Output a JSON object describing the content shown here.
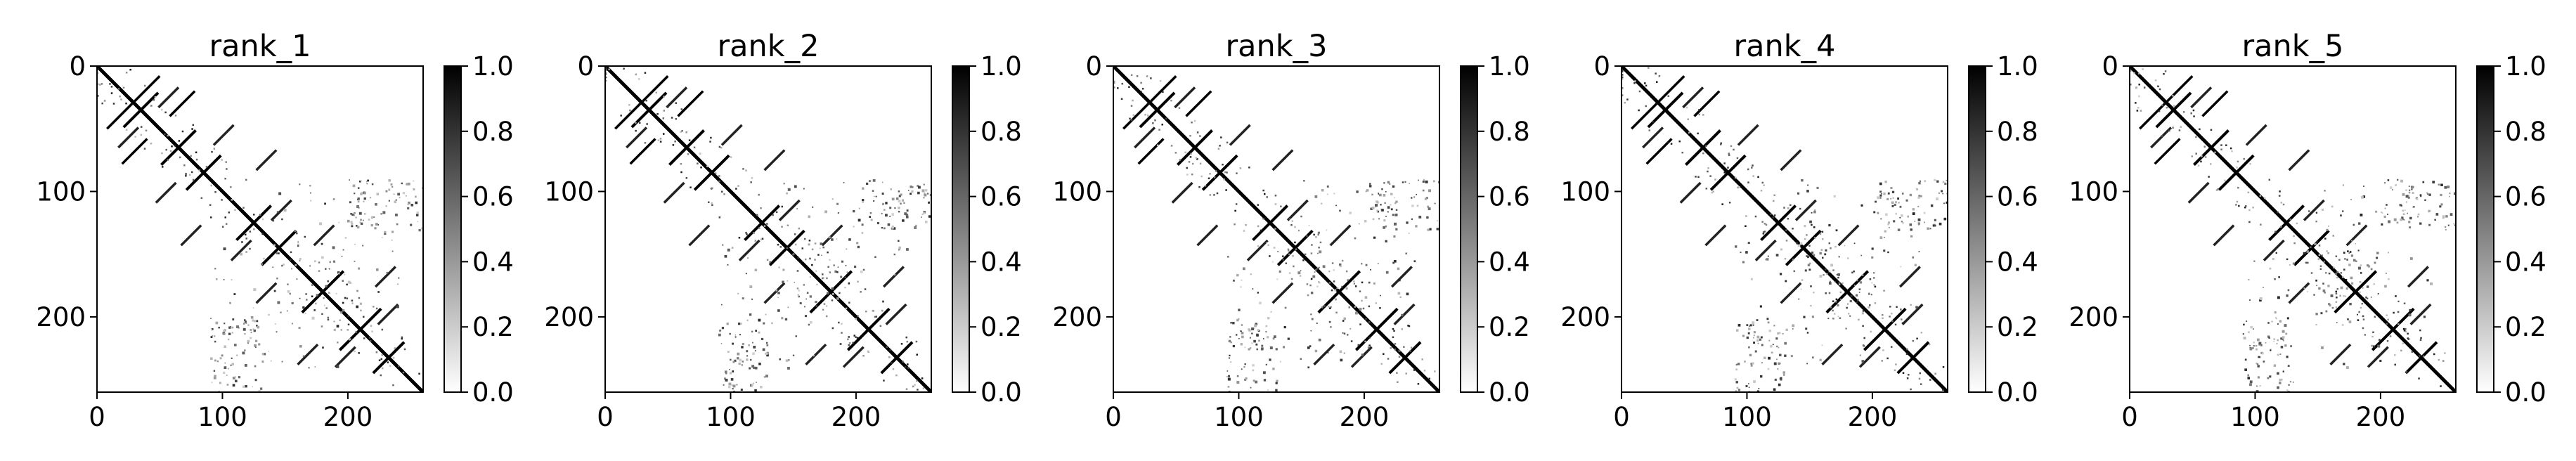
{
  "figure": {
    "background": "#ffffff",
    "colormap": "gray_r",
    "colors": {
      "low": "#ffffff",
      "high": "#000000"
    }
  },
  "chart_data": [
    {
      "type": "heatmap",
      "title": "rank_1",
      "xlabel": "",
      "ylabel": "",
      "xlim": [
        0,
        260
      ],
      "ylim": [
        260,
        0
      ],
      "xticks": [
        0,
        100,
        200
      ],
      "yticks": [
        0,
        100,
        200
      ],
      "matrix_size": 260,
      "colorbar": {
        "min": 0.0,
        "max": 1.0,
        "ticks": [
          "0.0",
          "0.2",
          "0.4",
          "0.6",
          "0.8",
          "1.0"
        ]
      },
      "structure": {
        "diagonal": true,
        "anti_diagonal_blocks": [
          [
            10,
            60
          ],
          [
            40,
            90
          ],
          [
            60,
            110
          ],
          [
            100,
            150
          ],
          [
            120,
            170
          ],
          [
            150,
            210
          ],
          [
            180,
            240
          ],
          [
            210,
            255
          ]
        ],
        "sparse_offdiag_regions": [
          [
            90,
            130,
            200,
            260
          ],
          [
            140,
            240,
            90,
            200
          ]
        ]
      }
    },
    {
      "type": "heatmap",
      "title": "rank_2",
      "xlabel": "",
      "ylabel": "",
      "xlim": [
        0,
        260
      ],
      "ylim": [
        260,
        0
      ],
      "xticks": [
        0,
        100,
        200
      ],
      "yticks": [
        0,
        100,
        200
      ],
      "matrix_size": 260,
      "colorbar": {
        "min": 0.0,
        "max": 1.0,
        "ticks": [
          "0.0",
          "0.2",
          "0.4",
          "0.6",
          "0.8",
          "1.0"
        ]
      },
      "structure": {
        "diagonal": true,
        "anti_diagonal_blocks": [
          [
            10,
            60
          ],
          [
            40,
            90
          ],
          [
            60,
            110
          ],
          [
            100,
            150
          ],
          [
            120,
            170
          ],
          [
            150,
            210
          ],
          [
            180,
            240
          ],
          [
            210,
            255
          ]
        ],
        "sparse_offdiag_regions": [
          [
            90,
            130,
            200,
            260
          ],
          [
            140,
            240,
            90,
            200
          ]
        ]
      }
    },
    {
      "type": "heatmap",
      "title": "rank_3",
      "xlabel": "",
      "ylabel": "",
      "xlim": [
        0,
        260
      ],
      "ylim": [
        260,
        0
      ],
      "xticks": [
        0,
        100,
        200
      ],
      "yticks": [
        0,
        100,
        200
      ],
      "matrix_size": 260,
      "colorbar": {
        "min": 0.0,
        "max": 1.0,
        "ticks": [
          "0.0",
          "0.2",
          "0.4",
          "0.6",
          "0.8",
          "1.0"
        ]
      },
      "structure": {
        "diagonal": true,
        "anti_diagonal_blocks": [
          [
            10,
            60
          ],
          [
            40,
            90
          ],
          [
            60,
            110
          ],
          [
            100,
            150
          ],
          [
            120,
            170
          ],
          [
            150,
            210
          ],
          [
            180,
            240
          ],
          [
            210,
            255
          ]
        ],
        "sparse_offdiag_regions": [
          [
            90,
            130,
            200,
            260
          ],
          [
            140,
            240,
            90,
            200
          ]
        ]
      }
    },
    {
      "type": "heatmap",
      "title": "rank_4",
      "xlabel": "",
      "ylabel": "",
      "xlim": [
        0,
        260
      ],
      "ylim": [
        260,
        0
      ],
      "xticks": [
        0,
        100,
        200
      ],
      "yticks": [
        0,
        100,
        200
      ],
      "matrix_size": 260,
      "colorbar": {
        "min": 0.0,
        "max": 1.0,
        "ticks": [
          "0.0",
          "0.2",
          "0.4",
          "0.6",
          "0.8",
          "1.0"
        ]
      },
      "structure": {
        "diagonal": true,
        "anti_diagonal_blocks": [
          [
            10,
            60
          ],
          [
            40,
            90
          ],
          [
            60,
            110
          ],
          [
            100,
            150
          ],
          [
            120,
            170
          ],
          [
            150,
            210
          ],
          [
            180,
            240
          ],
          [
            210,
            255
          ]
        ],
        "sparse_offdiag_regions": [
          [
            90,
            130,
            200,
            260
          ],
          [
            140,
            240,
            90,
            200
          ]
        ]
      }
    },
    {
      "type": "heatmap",
      "title": "rank_5",
      "xlabel": "",
      "ylabel": "",
      "xlim": [
        0,
        260
      ],
      "ylim": [
        260,
        0
      ],
      "xticks": [
        0,
        100,
        200
      ],
      "yticks": [
        0,
        100,
        200
      ],
      "matrix_size": 260,
      "colorbar": {
        "min": 0.0,
        "max": 1.0,
        "ticks": [
          "0.0",
          "0.2",
          "0.4",
          "0.6",
          "0.8",
          "1.0"
        ]
      },
      "structure": {
        "diagonal": true,
        "anti_diagonal_blocks": [
          [
            10,
            60
          ],
          [
            40,
            90
          ],
          [
            60,
            110
          ],
          [
            100,
            150
          ],
          [
            120,
            170
          ],
          [
            150,
            210
          ],
          [
            180,
            240
          ],
          [
            210,
            255
          ]
        ],
        "sparse_offdiag_regions": [
          [
            90,
            130,
            200,
            260
          ],
          [
            140,
            240,
            90,
            200
          ]
        ]
      }
    }
  ]
}
